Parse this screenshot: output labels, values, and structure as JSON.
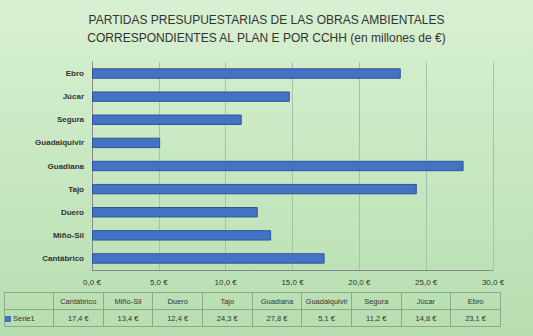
{
  "chart_data": {
    "type": "bar",
    "title": "PARTIDAS PRESUPUESTARIAS DE LAS OBRAS AMBIENTALES\nCORRESPONDIENTES AL PLAN E POR CCHH (en millones de €)",
    "orientation": "horizontal",
    "categories": [
      "Cantábrico",
      "Miño-Sil",
      "Duero",
      "Tajo",
      "Guadiana",
      "Guadalquivir",
      "Segura",
      "Júcar",
      "Ebro"
    ],
    "series": [
      {
        "name": "Serie1",
        "color": "#4472c4",
        "values": [
          17.4,
          13.4,
          12.4,
          24.3,
          27.8,
          5.1,
          11.2,
          14.8,
          23.1
        ],
        "value_labels": [
          "17,4 €",
          "13,4 €",
          "12,4 €",
          "24,3 €",
          "27,8 €",
          "5,1 €",
          "11,2 €",
          "14,8 €",
          "23,1 €"
        ]
      }
    ],
    "xlim": [
      0,
      30
    ],
    "xticks": [
      {
        "value": 0,
        "label": "0,0 €"
      },
      {
        "value": 5,
        "label": "5,0 €"
      },
      {
        "value": 10,
        "label": "10,0 €"
      },
      {
        "value": 15,
        "label": "15,0 €"
      },
      {
        "value": 20,
        "label": "20,0 €"
      },
      {
        "value": 25,
        "label": "25,0 €"
      },
      {
        "value": 30,
        "label": "30,0 €"
      }
    ],
    "grid": true
  }
}
